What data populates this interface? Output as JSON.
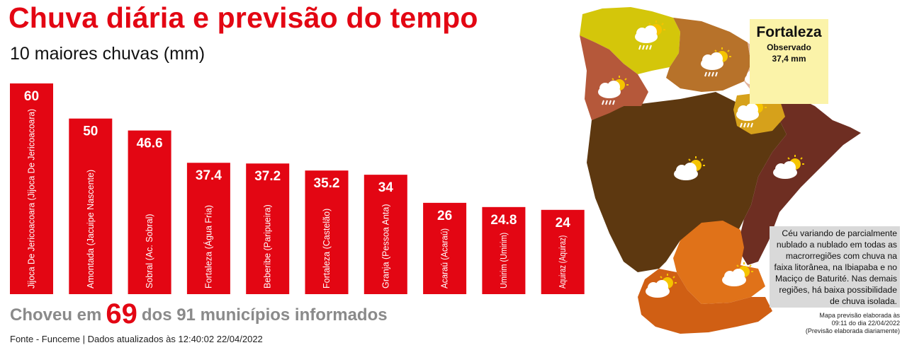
{
  "header": {
    "title": "Chuva diária e previsão do tempo",
    "subtitle": "10 maiores chuvas (mm)"
  },
  "chart_data": {
    "type": "bar",
    "title": "Chuva diária e previsão do tempo",
    "subtitle": "10 maiores chuvas (mm)",
    "categories": [
      "Jijoca De Jericoacoara (Jijoca De Jericoacoara)",
      "Amontada (Jacuipe Nascente)",
      "Sobral (Ac. Sobral)",
      "Fortaleza (Água Fria)",
      "Beberibe (Paripueira)",
      "Fortaleza (Castelão)",
      "Granja (Pessoa Anta)",
      "Acaraú (Acaraú)",
      "Umirim (Umirim)",
      "Aquiraz (Aquiraz)"
    ],
    "values": [
      60,
      50,
      46.6,
      37.4,
      37.2,
      35.2,
      34,
      26,
      24.8,
      24
    ],
    "value_labels": [
      "60",
      "50",
      "46.6",
      "37.4",
      "37.2",
      "35.2",
      "34",
      "26",
      "24.8",
      "24"
    ],
    "xlabel": "",
    "ylabel": "",
    "ylim": [
      0,
      60
    ],
    "grid": false,
    "bar_color": "#e30613"
  },
  "summary": {
    "prefix": "Choveu em",
    "count": "69",
    "suffix": "dos 91 municípios informados"
  },
  "source": "Fonte -  Funceme | Dados atualizados às  12:40:02 22/04/2022",
  "map": {
    "city_box": {
      "name": "Fortaleza",
      "observed_label": "Observado",
      "observed_value": "37,4 mm",
      "color": "#fbf3a9"
    },
    "forecast_note": "Céu variando de parcialmente nublado a nublado em todas as macrorregiões com chuva na faixa litorânea, na Ibiapaba e no Maciço de Baturité. Nas demais regiões, há baixa possibilidade de chuva isolada.",
    "map_note_lines": [
      "Mapa previsão elaborada às",
      "09:11 do dia 22/04/2022",
      "(Previsão elaborada diariamente)"
    ],
    "region_colors": {
      "litoral_norte": "#d4c60a",
      "ibiapaba": "#b5583a",
      "litoral_oeste": "#b7722a",
      "fortaleza_rm": "#e3b49b",
      "macico_baturite": "#d6a11b",
      "litoral_leste_jaguaribe": "#6e2e22",
      "sertao_central": "#5d3810",
      "cariri": "#e07219",
      "centro_sul": "#d05f14"
    },
    "icons": [
      "cloud-sun-rain-icon",
      "cloud-sun-icon"
    ]
  }
}
